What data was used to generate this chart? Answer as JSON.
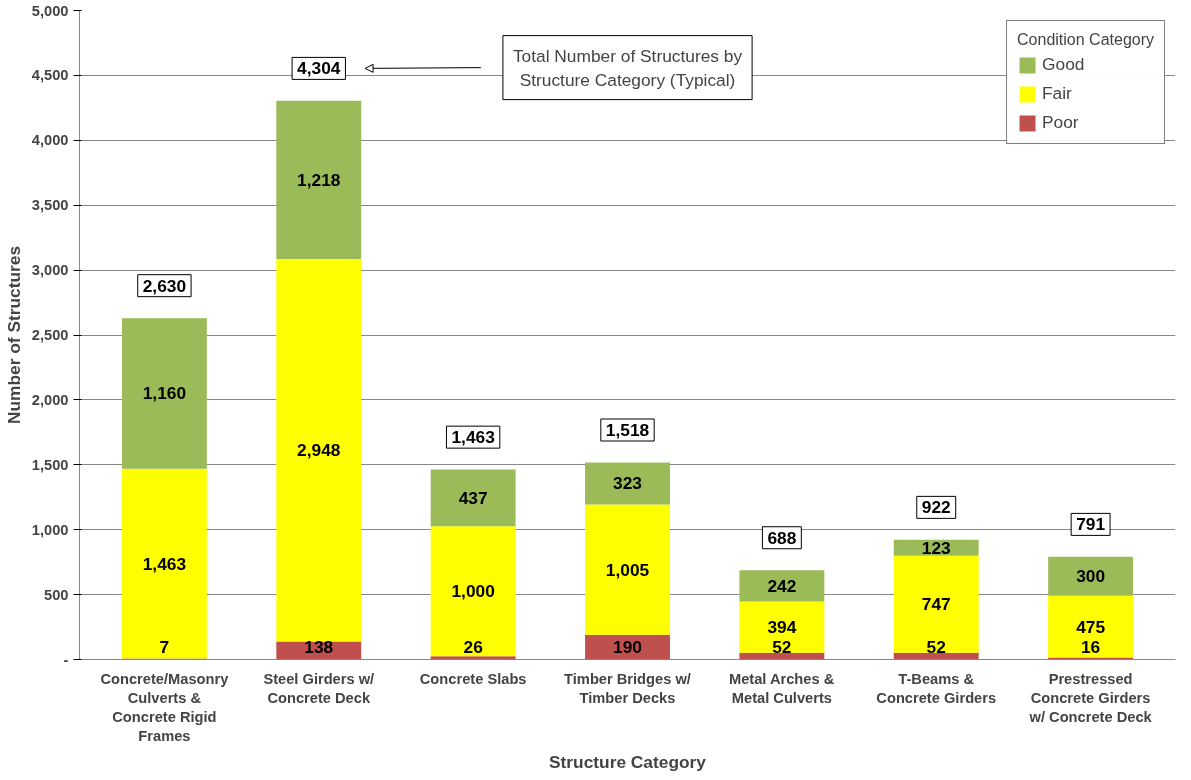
{
  "chart_data": {
    "type": "bar",
    "stacked": true,
    "xlabel": "Structure Category",
    "ylabel": "Number of Structures",
    "legend_title": "Condition Category",
    "legend": "top right",
    "grid": "y",
    "categories": [
      "Concrete/Masonry Culverts & Concrete Rigid Frames",
      "Steel Girders w/ Concrete Deck",
      "Concrete Slabs",
      "Timber Bridges w/ Timber Decks",
      "Metal Arches & Metal Culverts",
      "T-Beams & Concrete Girders",
      "Prestressed Concrete Girders w/ Concrete Deck"
    ],
    "series": [
      {
        "name": "Poor",
        "color": "#c0504d",
        "values": [
          7,
          138,
          26,
          190,
          52,
          52,
          16
        ],
        "value_labels": [
          "7",
          "138",
          "26",
          "190",
          "52",
          "52",
          "16"
        ]
      },
      {
        "name": "Fair",
        "color": "#ffff00",
        "values": [
          1463,
          2948,
          1000,
          1005,
          394,
          747,
          475
        ],
        "value_labels": [
          "1,463",
          "2,948",
          "1,000",
          "1,005",
          "394",
          "747",
          "475"
        ]
      },
      {
        "name": "Good",
        "color": "#9bbb59",
        "values": [
          1160,
          1218,
          437,
          323,
          242,
          123,
          300
        ],
        "value_labels": [
          "1,160",
          "1,218",
          "437",
          "323",
          "242",
          "123",
          "300"
        ]
      }
    ],
    "totals": [
      "2,630",
      "4,304",
      "1,463",
      "1,518",
      "688",
      "922",
      "791"
    ],
    "annotations": [
      "Total Number of Structures by Structure Category (Typical)"
    ],
    "ylim": [
      0,
      5000
    ],
    "yticks": [
      {
        "value": 0,
        "label": "-"
      },
      {
        "value": 500,
        "label": "500"
      },
      {
        "value": 1000,
        "label": "1,000"
      },
      {
        "value": 1500,
        "label": "1,500"
      },
      {
        "value": 2000,
        "label": "2,000"
      },
      {
        "value": 2500,
        "label": "2,500"
      },
      {
        "value": 3000,
        "label": "3,000"
      },
      {
        "value": 3500,
        "label": "3,500"
      },
      {
        "value": 4000,
        "label": "4,000"
      },
      {
        "value": 4500,
        "label": "4,500"
      },
      {
        "value": 5000,
        "label": "5,000"
      }
    ]
  }
}
